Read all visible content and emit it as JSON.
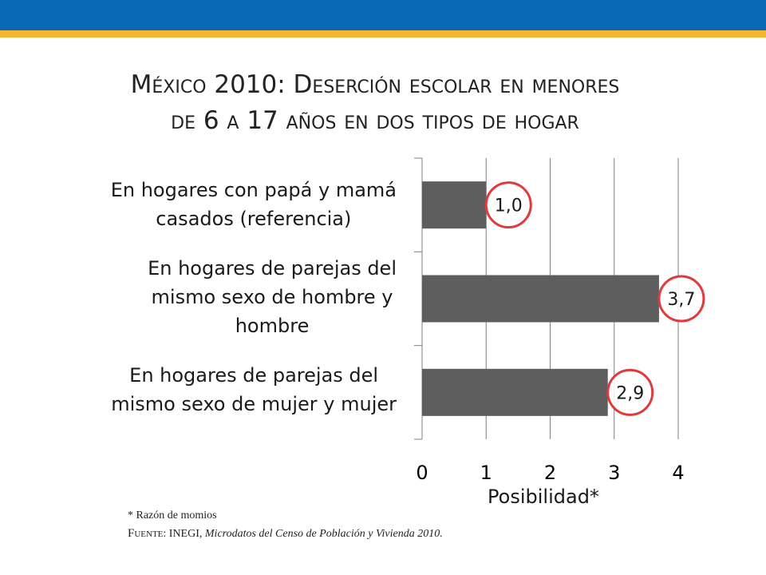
{
  "header": {
    "bar_color": "#0a67b6",
    "stripe_color": "#f2b632"
  },
  "title": {
    "line1": "México 2010: Deserción escolar en menores",
    "line2": "de 6 a 17 años en dos tipos de hogar"
  },
  "chart_data": {
    "type": "bar",
    "orientation": "horizontal",
    "categories": [
      [
        "En hogares con papá y mamá",
        "casados (referencia)"
      ],
      [
        "En hogares de parejas del",
        "mismo sexo de hombre y",
        "hombre"
      ],
      [
        "En hogares de parejas del",
        "mismo sexo de mujer y mujer"
      ]
    ],
    "values": [
      1.0,
      3.7,
      2.9
    ],
    "value_labels": [
      "1,0",
      "3,7",
      "2,9"
    ],
    "xlabel": "Posibilidad*",
    "xlim": [
      0,
      4
    ],
    "xticks": [
      "0",
      "1",
      "2",
      "3",
      "4"
    ],
    "grid": true,
    "bar_color": "#5e5e5e",
    "highlight_color": "#e03a3a"
  },
  "footer": {
    "footnote": "* Razón de momios",
    "source_lead": "Fuente",
    "source_org": ": INEGI, ",
    "source_title": "Microdatos del Censo de Población y Vivienda 2010."
  }
}
